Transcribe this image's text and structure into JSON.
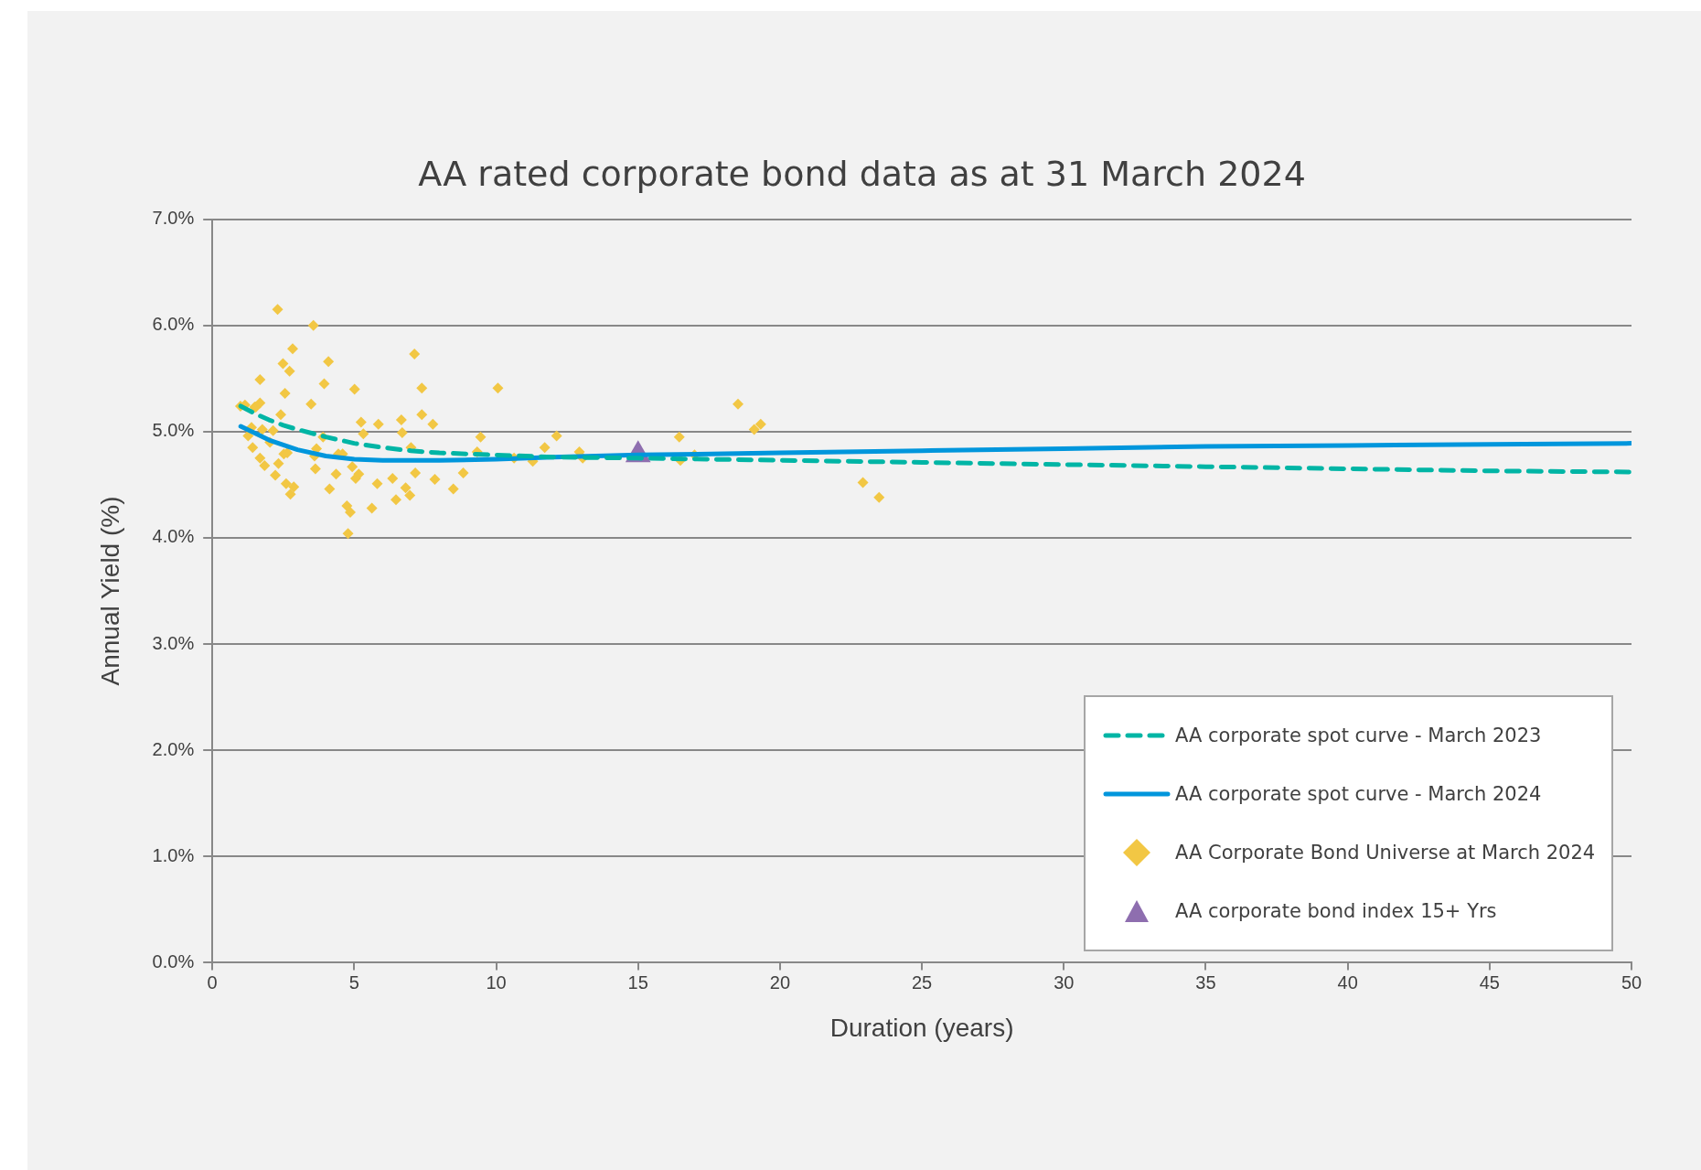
{
  "chart_data": {
    "type": "line",
    "title": "AA rated corporate bond data as at 31 March 2024",
    "xlabel": "Duration (years)",
    "ylabel": "Annual Yield (%)",
    "xlim": [
      0,
      50
    ],
    "xticks": [
      0,
      5,
      10,
      15,
      20,
      25,
      30,
      35,
      40,
      45,
      50
    ],
    "ylim": [
      0,
      7
    ],
    "yticks": [
      {
        "value": 0,
        "label": "0.0%"
      },
      {
        "value": 1,
        "label": "1.0%"
      },
      {
        "value": 2,
        "label": "2.0%"
      },
      {
        "value": 3,
        "label": "3.0%"
      },
      {
        "value": 4,
        "label": "4.0%"
      },
      {
        "value": 5,
        "label": "5.0%"
      },
      {
        "value": 6,
        "label": "6.0%"
      },
      {
        "value": 7,
        "label": "7.0%"
      }
    ],
    "grid": "y",
    "legend": "bottom right",
    "series": [
      {
        "name": "AA corporate spot curve - March 2023",
        "color": "#00b5a5",
        "line_style": "dashed",
        "marker": "none",
        "x": [
          1,
          1.5,
          2,
          2.5,
          3,
          4,
          5,
          6,
          7,
          8,
          10,
          12,
          15,
          20,
          25,
          30,
          35,
          40,
          45,
          50
        ],
        "values": [
          5.24,
          5.17,
          5.11,
          5.06,
          5.02,
          4.95,
          4.89,
          4.85,
          4.82,
          4.8,
          4.78,
          4.76,
          4.75,
          4.73,
          4.71,
          4.69,
          4.67,
          4.65,
          4.63,
          4.62
        ]
      },
      {
        "name": "AA corporate spot curve - March 2024",
        "color": "#0096dc",
        "line_style": "solid",
        "marker": "none",
        "x": [
          1,
          2,
          3,
          4,
          5,
          6,
          7,
          8,
          10,
          12,
          15,
          20,
          25,
          30,
          35,
          40,
          45,
          50
        ],
        "values": [
          5.05,
          4.92,
          4.83,
          4.77,
          4.74,
          4.73,
          4.73,
          4.73,
          4.74,
          4.76,
          4.78,
          4.8,
          4.82,
          4.84,
          4.86,
          4.87,
          4.88,
          4.89
        ]
      },
      {
        "name": "AA Corporate Bond Universe at March 2024",
        "type": "scatter",
        "color": "#f2c744",
        "marker": "diamond",
        "x": [
          0.99,
          1.15,
          1.26,
          1.38,
          1.49,
          1.42,
          1.53,
          1.68,
          1.68,
          1.68,
          1.76,
          1.84,
          2.03,
          2.14,
          2.22,
          2.3,
          2.33,
          2.41,
          2.49,
          2.52,
          2.56,
          2.6,
          2.64,
          2.72,
          2.75,
          2.83,
          2.87,
          3.48,
          3.56,
          3.6,
          3.63,
          3.67,
          3.9,
          3.94,
          4.09,
          4.13,
          4.36,
          4.44,
          4.59,
          4.74,
          4.78,
          4.86,
          4.93,
          5.01,
          5.05,
          5.16,
          5.24,
          5.32,
          5.62,
          5.81,
          5.85,
          6.35,
          6.47,
          6.66,
          6.69,
          6.81,
          6.96,
          7.0,
          7.12,
          7.15,
          7.38,
          7.38,
          7.77,
          7.84,
          8.49,
          8.84,
          9.33,
          9.45,
          10.06,
          10.63,
          11.29,
          11.71,
          12.13,
          12.93,
          13.05,
          16.45,
          16.49,
          16.99,
          18.52,
          19.09,
          19.32,
          22.92,
          23.49
        ],
        "values": [
          5.24,
          5.25,
          4.96,
          5.04,
          5.23,
          4.85,
          5.23,
          5.49,
          5.27,
          4.75,
          5.02,
          4.68,
          4.9,
          5.01,
          4.59,
          6.15,
          4.7,
          5.16,
          5.64,
          4.79,
          5.36,
          4.51,
          4.8,
          5.57,
          4.41,
          5.78,
          4.48,
          5.26,
          6.0,
          4.77,
          4.65,
          4.84,
          4.95,
          5.45,
          5.66,
          4.46,
          4.6,
          4.79,
          4.79,
          4.3,
          4.04,
          4.24,
          4.67,
          5.4,
          4.56,
          4.6,
          5.09,
          4.98,
          4.28,
          4.51,
          5.07,
          4.56,
          4.36,
          5.11,
          4.99,
          4.47,
          4.4,
          4.85,
          5.73,
          4.61,
          5.41,
          5.16,
          5.07,
          4.55,
          4.46,
          4.61,
          4.81,
          4.95,
          5.41,
          4.75,
          4.72,
          4.85,
          4.96,
          4.81,
          4.75,
          4.95,
          4.73,
          4.78,
          5.26,
          5.02,
          5.07,
          4.52,
          4.38
        ]
      },
      {
        "name": "AA corporate bond index 15+ Yrs",
        "type": "scatter",
        "color": "#8e6eaf",
        "marker": "triangle",
        "x": [
          15
        ],
        "values": [
          4.78
        ]
      }
    ]
  }
}
